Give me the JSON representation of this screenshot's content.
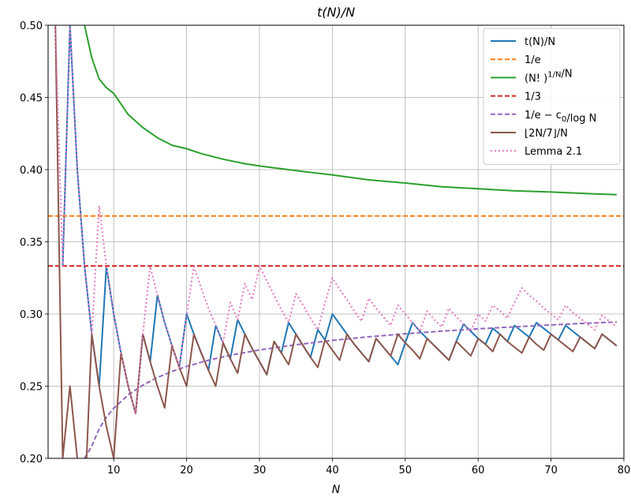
{
  "chart_data": {
    "type": "line",
    "title": "t(N)/N",
    "xlabel": "N",
    "ylabel": "",
    "xlim": [
      1,
      80
    ],
    "ylim": [
      0.2,
      0.5
    ],
    "xticks": [
      10,
      20,
      30,
      40,
      50,
      60,
      70,
      80
    ],
    "yticks": [
      0.2,
      0.25,
      0.3,
      0.35,
      0.4,
      0.45,
      0.5
    ],
    "ytick_labels": [
      "0.20",
      "0.25",
      "0.30",
      "0.35",
      "0.40",
      "0.45",
      "0.50"
    ],
    "grid": true,
    "legend_position": "top-right",
    "series": [
      {
        "name": "t(N)/N",
        "color": "#1f77b4",
        "style": "solid",
        "x": [
          3,
          4,
          5,
          6,
          7,
          8,
          9,
          10,
          11,
          12,
          13,
          14,
          15,
          16,
          17,
          18,
          19,
          20,
          21,
          22,
          23,
          24,
          25,
          26,
          27,
          28,
          29,
          30,
          31,
          32,
          33,
          34,
          35,
          36,
          37,
          38,
          39,
          40,
          41,
          42,
          43,
          44,
          45,
          46,
          47,
          48,
          49,
          50,
          51,
          52,
          53,
          54,
          55,
          56,
          57,
          58,
          59,
          60,
          61,
          62,
          63,
          64,
          65,
          66,
          67,
          68,
          69,
          70,
          71,
          72,
          73,
          74,
          75,
          76,
          77,
          78,
          79
        ],
        "y": [
          0.333,
          0.5,
          0.4,
          0.333,
          0.286,
          0.25,
          0.333,
          0.3,
          0.273,
          0.25,
          0.231,
          0.286,
          0.267,
          0.313,
          0.294,
          0.278,
          0.263,
          0.3,
          0.286,
          0.273,
          0.261,
          0.292,
          0.28,
          0.269,
          0.296,
          0.286,
          0.276,
          0.267,
          0.258,
          0.281,
          0.273,
          0.294,
          0.286,
          0.278,
          0.27,
          0.289,
          0.282,
          0.3,
          0.293,
          0.286,
          0.279,
          0.273,
          0.267,
          0.283,
          0.277,
          0.271,
          0.265,
          0.28,
          0.294,
          0.288,
          0.283,
          0.278,
          0.273,
          0.268,
          0.281,
          0.293,
          0.288,
          0.283,
          0.279,
          0.29,
          0.286,
          0.281,
          0.292,
          0.288,
          0.284,
          0.294,
          0.29,
          0.286,
          0.282,
          0.292,
          0.288,
          0.284,
          0.28,
          0.276,
          0.286,
          0.282,
          0.278
        ]
      },
      {
        "name": "1/e",
        "color": "#ff7f0e",
        "style": "dashed",
        "x": [
          1,
          80
        ],
        "y": [
          0.3679,
          0.3679
        ]
      },
      {
        "name": "(N!)^{1/N}/N",
        "color": "#2ca02c",
        "style": "solid",
        "x": [
          6,
          7,
          8,
          9,
          10,
          12,
          14,
          16,
          18,
          20,
          22,
          25,
          28,
          30,
          35,
          40,
          45,
          50,
          55,
          60,
          65,
          70,
          75,
          79
        ],
        "y": [
          0.5,
          0.4774,
          0.4628,
          0.4567,
          0.4528,
          0.4381,
          0.4291,
          0.4221,
          0.4169,
          0.4145,
          0.4111,
          0.4072,
          0.4041,
          0.4025,
          0.3993,
          0.3963,
          0.3929,
          0.3907,
          0.3881,
          0.3868,
          0.3853,
          0.3845,
          0.3834,
          0.3826
        ]
      },
      {
        "name": "1/3",
        "color": "#d62728",
        "style": "dashed",
        "x": [
          1,
          80
        ],
        "y": [
          0.3333,
          0.3333
        ]
      },
      {
        "name": "1/e - c_0/log N",
        "color": "#9467bd",
        "style": "dashed",
        "x": [
          6,
          7,
          8,
          9,
          10,
          12,
          14,
          16,
          18,
          20,
          23,
          26,
          30,
          35,
          40,
          45,
          50,
          55,
          60,
          65,
          70,
          75,
          79
        ],
        "y": [
          0.2,
          0.2085,
          0.2205,
          0.2285,
          0.2347,
          0.244,
          0.2507,
          0.256,
          0.2602,
          0.2637,
          0.268,
          0.2714,
          0.2751,
          0.2787,
          0.2817,
          0.2842,
          0.2863,
          0.2881,
          0.2897,
          0.2911,
          0.2924,
          0.2936,
          0.2944
        ]
      },
      {
        "name": "⌊2N/7⌋/N",
        "color": "#8c564b",
        "style": "solid",
        "x": [
          2,
          3,
          4,
          5,
          6,
          7,
          8,
          9,
          10,
          11,
          12,
          13,
          14,
          15,
          16,
          17,
          18,
          19,
          20,
          21,
          22,
          23,
          24,
          25,
          26,
          27,
          28,
          29,
          30,
          31,
          32,
          33,
          34,
          35,
          36,
          37,
          38,
          39,
          40,
          41,
          42,
          43,
          44,
          45,
          46,
          47,
          48,
          49,
          50,
          51,
          52,
          53,
          54,
          55,
          56,
          57,
          58,
          59,
          60,
          61,
          62,
          63,
          64,
          65,
          66,
          67,
          68,
          69,
          70,
          71,
          72,
          73,
          74,
          75,
          76,
          77,
          78,
          79
        ],
        "y": [
          0.5,
          0.2,
          0.25,
          0.2,
          0.167,
          0.286,
          0.25,
          0.222,
          0.2,
          0.273,
          0.25,
          0.231,
          0.286,
          0.267,
          0.25,
          0.235,
          0.278,
          0.263,
          0.25,
          0.286,
          0.273,
          0.261,
          0.25,
          0.28,
          0.269,
          0.259,
          0.286,
          0.276,
          0.267,
          0.258,
          0.281,
          0.273,
          0.265,
          0.286,
          0.278,
          0.27,
          0.263,
          0.282,
          0.275,
          0.268,
          0.286,
          0.279,
          0.273,
          0.267,
          0.283,
          0.277,
          0.271,
          0.286,
          0.28,
          0.275,
          0.269,
          0.283,
          0.278,
          0.273,
          0.268,
          0.281,
          0.276,
          0.271,
          0.283,
          0.279,
          0.274,
          0.286,
          0.281,
          0.277,
          0.273,
          0.284,
          0.279,
          0.275,
          0.286,
          0.282,
          0.278,
          0.274,
          0.284,
          0.28,
          0.276,
          0.286,
          0.282,
          0.278
        ]
      },
      {
        "name": "Lemma 2.1",
        "color": "#e377c2",
        "style": "dotted",
        "x": [
          2,
          3,
          4,
          5,
          6,
          7,
          8,
          9,
          10,
          11,
          12,
          13,
          14,
          15,
          16,
          17,
          18,
          19,
          20,
          21,
          22,
          23,
          24,
          25,
          26,
          27,
          28,
          29,
          30,
          31,
          32,
          33,
          34,
          35,
          36,
          37,
          38,
          39,
          40,
          41,
          42,
          43,
          44,
          45,
          46,
          47,
          48,
          49,
          50,
          51,
          52,
          53,
          54,
          55,
          56,
          57,
          58,
          59,
          60,
          61,
          62,
          63,
          64,
          65,
          66,
          67,
          68,
          69,
          70,
          71,
          72,
          73,
          74,
          75,
          76,
          77,
          78,
          79
        ],
        "y": [
          0.5,
          0.333,
          0.5,
          0.4,
          0.333,
          0.286,
          0.375,
          0.333,
          0.3,
          0.273,
          0.25,
          0.231,
          0.286,
          0.333,
          0.313,
          0.294,
          0.278,
          0.263,
          0.3,
          0.333,
          0.318,
          0.304,
          0.292,
          0.28,
          0.308,
          0.296,
          0.321,
          0.31,
          0.333,
          0.323,
          0.313,
          0.303,
          0.294,
          0.314,
          0.306,
          0.297,
          0.289,
          0.308,
          0.325,
          0.317,
          0.31,
          0.302,
          0.295,
          0.311,
          0.304,
          0.298,
          0.292,
          0.306,
          0.3,
          0.294,
          0.288,
          0.302,
          0.296,
          0.291,
          0.304,
          0.298,
          0.293,
          0.288,
          0.3,
          0.295,
          0.306,
          0.302,
          0.297,
          0.308,
          0.318,
          0.313,
          0.309,
          0.304,
          0.3,
          0.296,
          0.306,
          0.301,
          0.297,
          0.293,
          0.289,
          0.299,
          0.295,
          0.291
        ]
      }
    ],
    "legend": [
      {
        "label": "t(N)/N",
        "style": "solid",
        "color": "#1f77b4"
      },
      {
        "label": "1/e",
        "style": "dashed",
        "color": "#ff7f0e"
      },
      {
        "label": "(N! )^{1/N}/N",
        "style": "solid",
        "color": "#2ca02c"
      },
      {
        "label": "1/3",
        "style": "dashed",
        "color": "#d62728"
      },
      {
        "label": "1/e − c_0/log N",
        "style": "dashed",
        "color": "#9467bd"
      },
      {
        "label": "⌊2N/7⌋/N",
        "style": "solid",
        "color": "#8c564b"
      },
      {
        "label": "Lemma 2.1",
        "style": "dotted",
        "color": "#e377c2"
      }
    ]
  }
}
